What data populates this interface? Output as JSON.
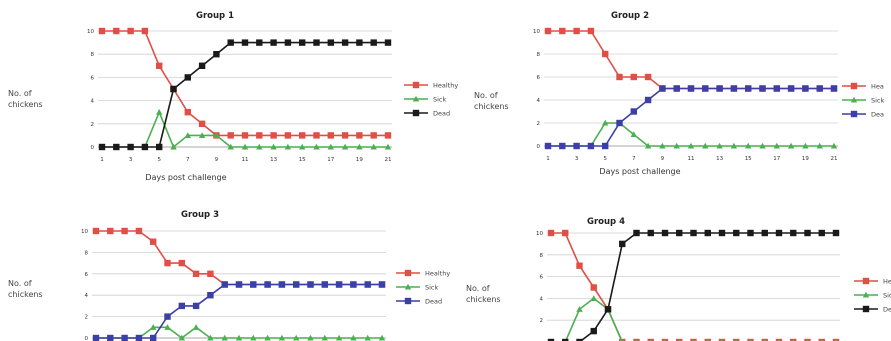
{
  "chart_data": [
    {
      "type": "line",
      "title": "Group 1",
      "ylabel": [
        "No. of",
        "chickens"
      ],
      "xlabel": "Days post challenge",
      "x": [
        1,
        2,
        3,
        4,
        5,
        6,
        7,
        8,
        9,
        10,
        11,
        12,
        13,
        14,
        15,
        16,
        17,
        18,
        19,
        20,
        21
      ],
      "xticks": [
        1,
        3,
        5,
        7,
        9,
        11,
        13,
        15,
        17,
        19,
        21
      ],
      "ylim": [
        0,
        10
      ],
      "yticks": [
        0,
        2,
        4,
        6,
        8,
        10
      ],
      "legend_position": "right",
      "series": [
        {
          "name": "Healthy",
          "color": "#e04f45",
          "marker": "square",
          "values": [
            10,
            10,
            10,
            10,
            7,
            5,
            3,
            2,
            1,
            1,
            1,
            1,
            1,
            1,
            1,
            1,
            1,
            1,
            1,
            1,
            1
          ]
        },
        {
          "name": "Sick",
          "color": "#4caf50",
          "marker": "triangle",
          "values": [
            0,
            0,
            0,
            0,
            3,
            0,
            1,
            1,
            1,
            0,
            0,
            0,
            0,
            0,
            0,
            0,
            0,
            0,
            0,
            0,
            0
          ]
        },
        {
          "name": "Dead",
          "color": "#1a1a1a",
          "marker": "square",
          "values": [
            0,
            0,
            0,
            0,
            0,
            5,
            6,
            7,
            8,
            9,
            9,
            9,
            9,
            9,
            9,
            9,
            9,
            9,
            9,
            9,
            9
          ]
        }
      ]
    },
    {
      "type": "line",
      "title": "Group 2",
      "ylabel": [
        "No. of",
        "chickens"
      ],
      "xlabel": "Days post challenge",
      "x": [
        1,
        2,
        3,
        4,
        5,
        6,
        7,
        8,
        9,
        10,
        11,
        12,
        13,
        14,
        15,
        16,
        17,
        18,
        19,
        20,
        21
      ],
      "xticks": [
        1,
        3,
        5,
        7,
        9,
        11,
        13,
        15,
        17,
        19,
        21
      ],
      "ylim": [
        0,
        10
      ],
      "yticks": [
        0,
        2,
        4,
        6,
        8,
        10
      ],
      "legend_position": "right",
      "series": [
        {
          "name": "Hea",
          "color": "#e04f45",
          "marker": "square",
          "values": [
            10,
            10,
            10,
            10,
            8,
            6,
            6,
            6,
            5,
            5,
            5,
            5,
            5,
            5,
            5,
            5,
            5,
            5,
            5,
            5,
            5
          ]
        },
        {
          "name": "Sick",
          "color": "#4caf50",
          "marker": "triangle",
          "values": [
            0,
            0,
            0,
            0,
            2,
            2,
            1,
            0,
            0,
            0,
            0,
            0,
            0,
            0,
            0,
            0,
            0,
            0,
            0,
            0,
            0
          ]
        },
        {
          "name": "Dea",
          "color": "#3b3fa6",
          "marker": "square",
          "values": [
            0,
            0,
            0,
            0,
            0,
            2,
            3,
            4,
            5,
            5,
            5,
            5,
            5,
            5,
            5,
            5,
            5,
            5,
            5,
            5,
            5
          ]
        }
      ]
    },
    {
      "type": "line",
      "title": "Group 3",
      "ylabel": [
        "No. of",
        "chickens"
      ],
      "xlabel": "",
      "x": [
        1,
        2,
        3,
        4,
        5,
        6,
        7,
        8,
        9,
        10,
        11,
        12,
        13,
        14,
        15,
        16,
        17,
        18,
        19,
        20,
        21
      ],
      "xticks": [],
      "ylim": [
        0,
        10
      ],
      "yticks": [
        0,
        2,
        4,
        6,
        8,
        10
      ],
      "legend_position": "right",
      "series": [
        {
          "name": "Healthy",
          "color": "#e04f45",
          "marker": "square",
          "values": [
            10,
            10,
            10,
            10,
            9,
            7,
            7,
            6,
            6,
            5,
            5,
            5,
            5,
            5,
            5,
            5,
            5,
            5,
            5,
            5,
            5
          ]
        },
        {
          "name": "Sick",
          "color": "#4caf50",
          "marker": "triangle",
          "values": [
            0,
            0,
            0,
            0,
            1,
            1,
            0,
            1,
            0,
            0,
            0,
            0,
            0,
            0,
            0,
            0,
            0,
            0,
            0,
            0,
            0
          ]
        },
        {
          "name": "Dead",
          "color": "#3b3fa6",
          "marker": "square",
          "values": [
            0,
            0,
            0,
            0,
            0,
            2,
            3,
            3,
            4,
            5,
            5,
            5,
            5,
            5,
            5,
            5,
            5,
            5,
            5,
            5,
            5
          ]
        }
      ]
    },
    {
      "type": "line",
      "title": "Group 4",
      "ylabel": [
        "No. of",
        "chickens"
      ],
      "xlabel": "",
      "x": [
        1,
        2,
        3,
        4,
        5,
        6,
        7,
        8,
        9,
        10,
        11,
        12,
        13,
        14,
        15,
        16,
        17,
        18,
        19,
        20,
        21
      ],
      "xticks": [],
      "ylim": [
        0,
        10
      ],
      "yticks": [
        2,
        4,
        6,
        8,
        10
      ],
      "legend_position": "right",
      "series": [
        {
          "name": "He",
          "color": "#e04f45",
          "marker": "square",
          "values": [
            10,
            10,
            7,
            5,
            3,
            0,
            0,
            0,
            0,
            0,
            0,
            0,
            0,
            0,
            0,
            0,
            0,
            0,
            0,
            0,
            0
          ]
        },
        {
          "name": "Sic",
          "color": "#4caf50",
          "marker": "triangle",
          "values": [
            0,
            0,
            3,
            4,
            3,
            0,
            0,
            0,
            0,
            0,
            0,
            0,
            0,
            0,
            0,
            0,
            0,
            0,
            0,
            0,
            0
          ]
        },
        {
          "name": "De",
          "color": "#1a1a1a",
          "marker": "square",
          "values": [
            0,
            0,
            0,
            1,
            3,
            9,
            10,
            10,
            10,
            10,
            10,
            10,
            10,
            10,
            10,
            10,
            10,
            10,
            10,
            10,
            10
          ]
        }
      ]
    }
  ]
}
